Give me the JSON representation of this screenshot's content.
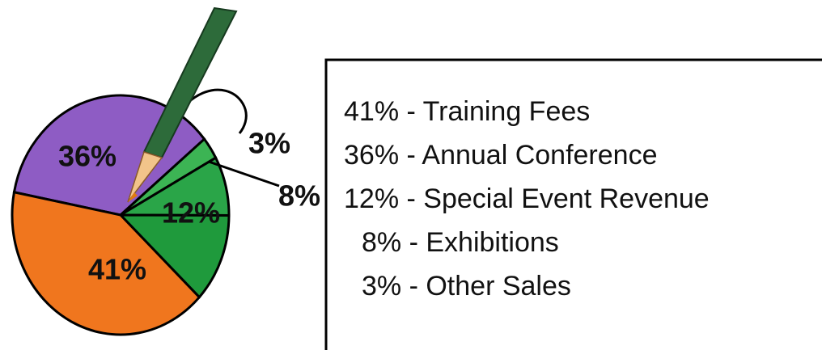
{
  "chart_data": {
    "type": "pie",
    "categories": [
      "41% - Training Fees",
      "36% - Annual Conference",
      "12% - Special Event Revenue",
      "8% - Exhibitions",
      "3% - Other Sales"
    ],
    "values": [
      41,
      36,
      12,
      8,
      3
    ],
    "value_labels": [
      "41%",
      "36%",
      "12%",
      "8%",
      "3%"
    ],
    "colors": [
      "#f0761e",
      "#8e5cc4",
      "#1f9a3c",
      "#2aa548",
      "#3cb454"
    ]
  }
}
